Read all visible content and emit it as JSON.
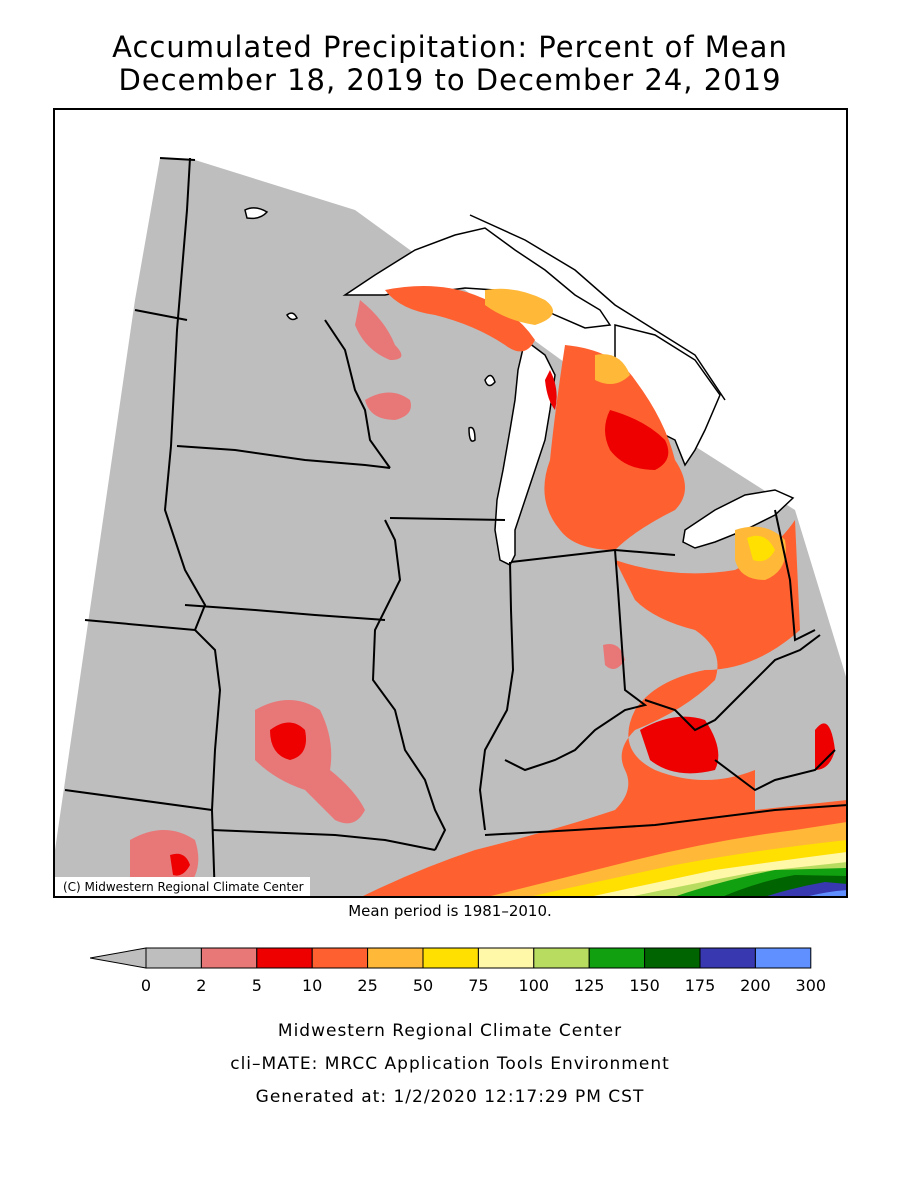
{
  "title": {
    "line1": "Accumulated Precipitation: Percent of Mean",
    "line2": "December 18, 2019 to December 24, 2019"
  },
  "map": {
    "credit": "(C) Midwestern Regional Climate Center",
    "mean_period": "Mean period is 1981–2010."
  },
  "legend": {
    "ticks": [
      "0",
      "2",
      "5",
      "10",
      "25",
      "50",
      "75",
      "100",
      "125",
      "150",
      "175",
      "200",
      "300"
    ],
    "colors": [
      "#bebebe",
      "#e87878",
      "#ee0000",
      "#ff6030",
      "#ffb838",
      "#ffe000",
      "#fff8a8",
      "#b8dc60",
      "#10a010",
      "#006400",
      "#3838b0",
      "#6090ff"
    ]
  },
  "footer": {
    "line1": "Midwestern Regional Climate Center",
    "line2": "cli–MATE: MRCC Application Tools Environment",
    "line3": "Generated at: 1/2/2020 12:17:29 PM CST"
  },
  "colors": {
    "gray": "#bebebe",
    "pink": "#e87878",
    "red": "#ee0000",
    "orange": "#ff6030",
    "light_orange": "#ffb838",
    "yellow": "#ffe000",
    "pale_yellow": "#fff8a8",
    "light_green": "#b8dc60",
    "green": "#10a010",
    "dark_green": "#006400",
    "navy": "#3838b0",
    "blue": "#6090ff"
  }
}
